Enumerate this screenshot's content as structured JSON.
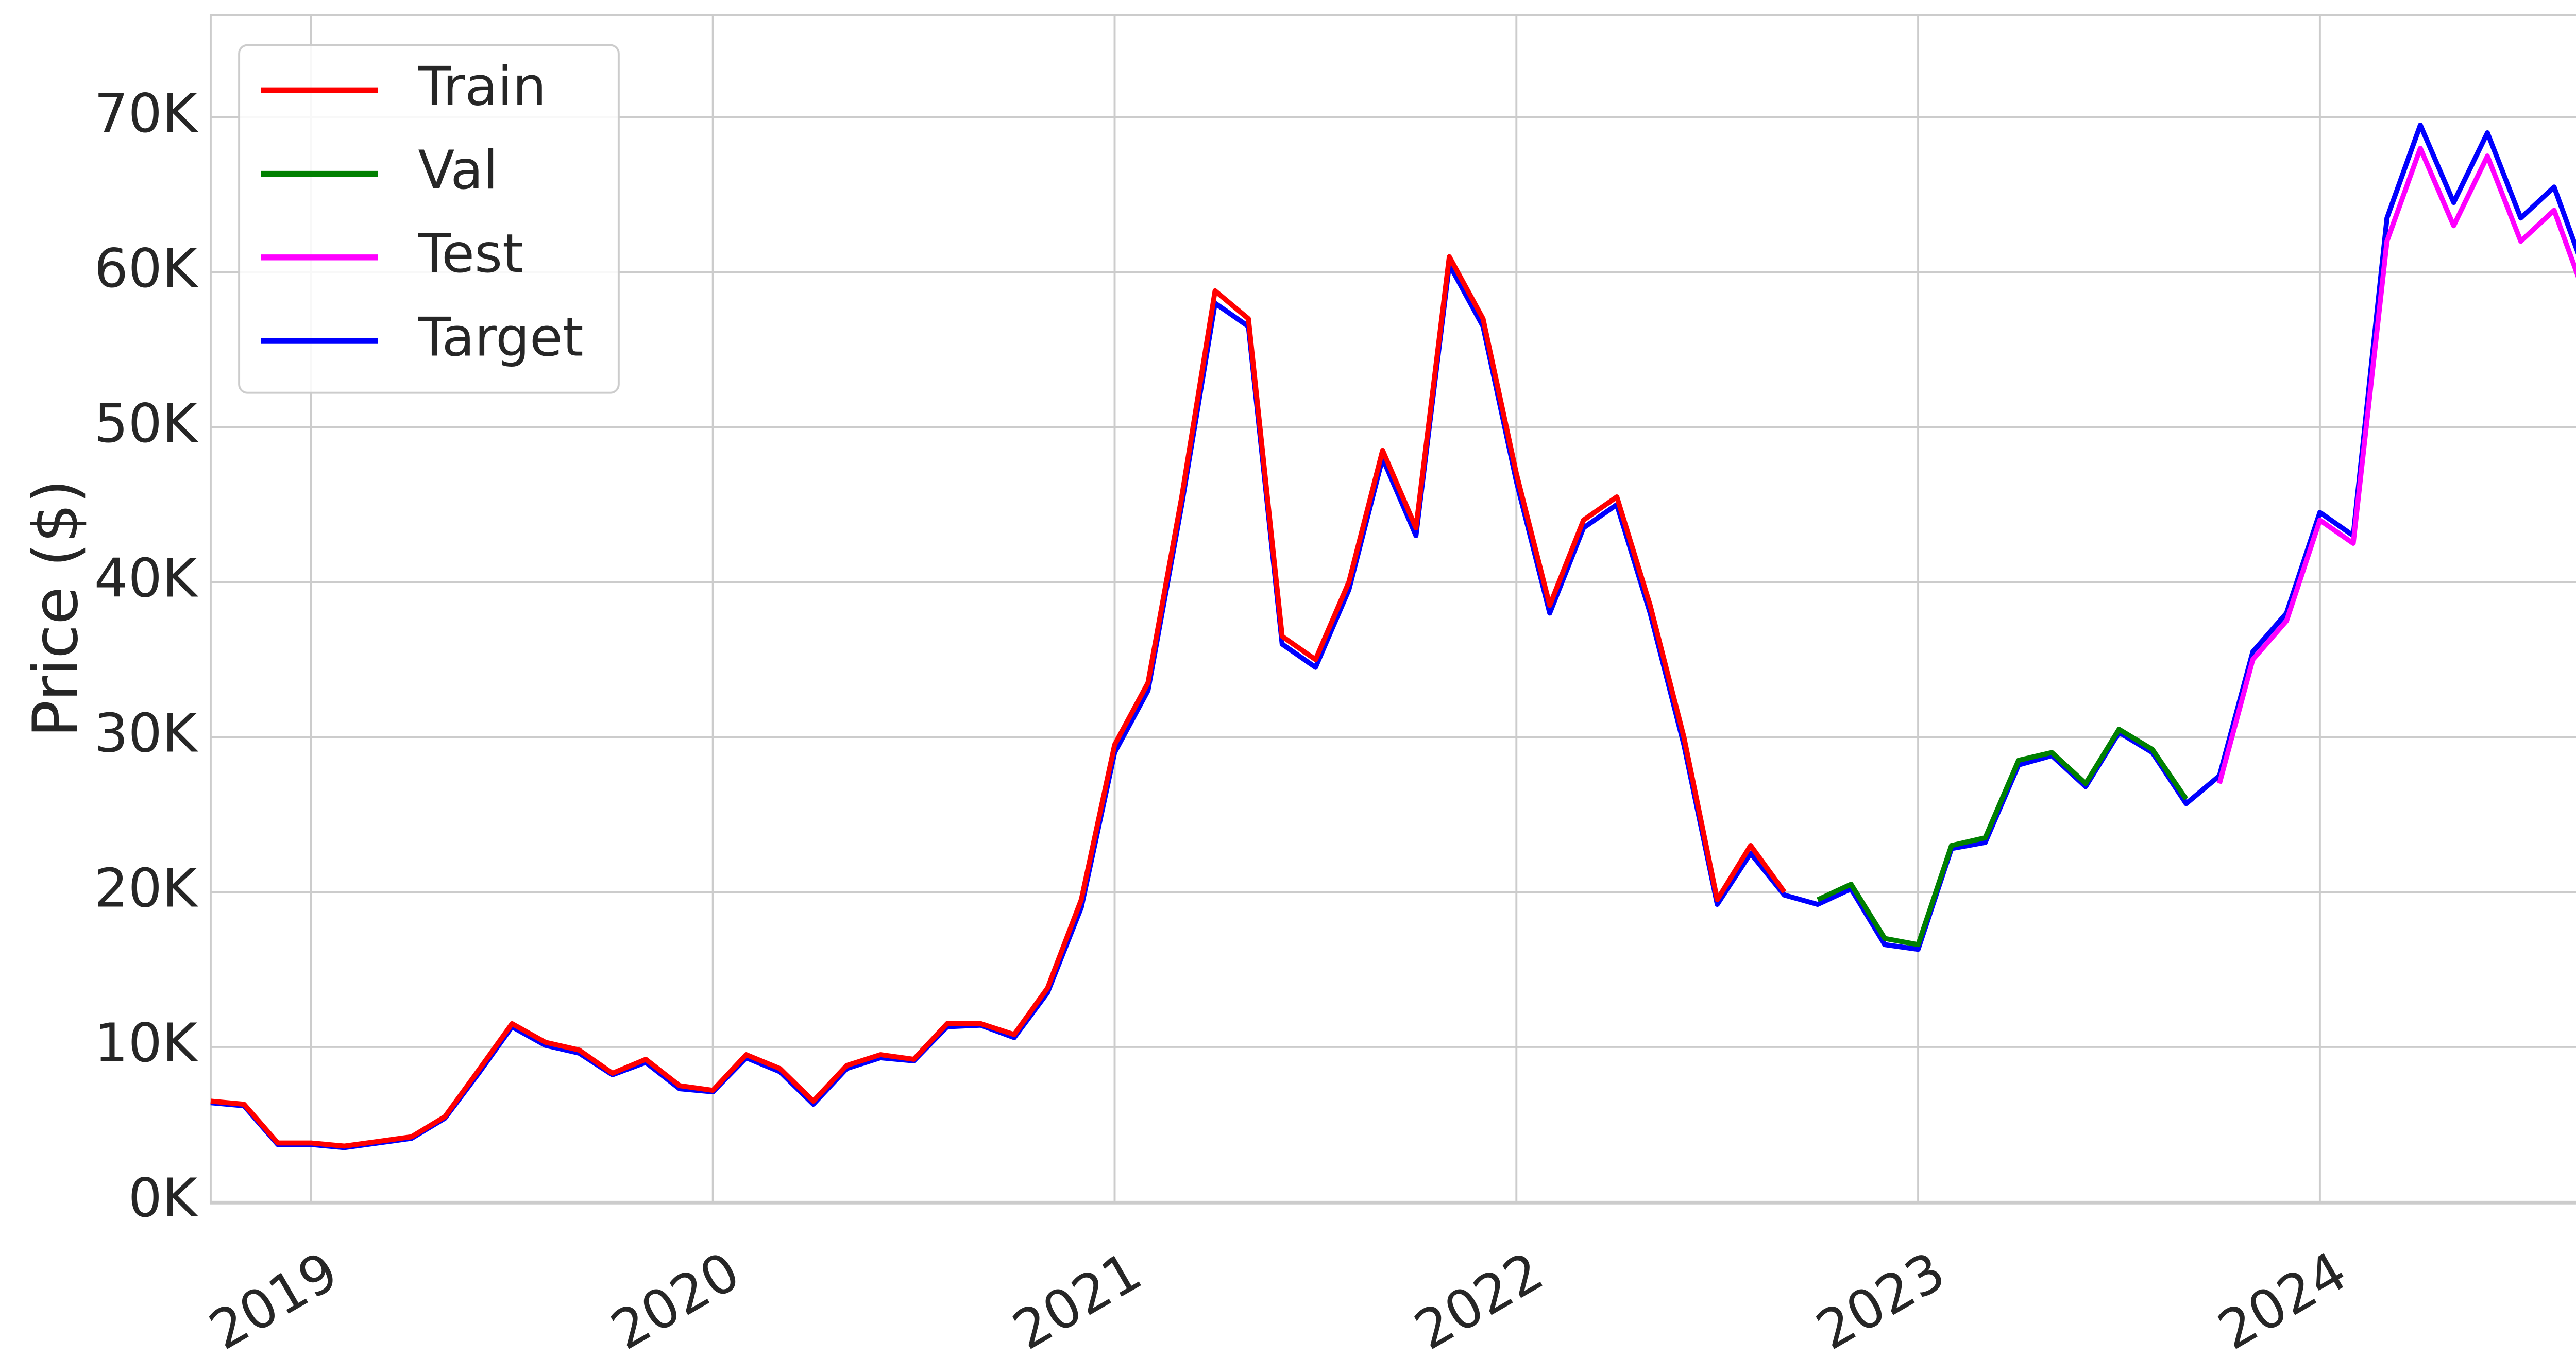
{
  "chart_data": {
    "type": "line",
    "y_label": "Price ($)",
    "x": [
      2018.75,
      2018.833,
      2018.917,
      2019,
      2019.083,
      2019.167,
      2019.25,
      2019.333,
      2019.417,
      2019.5,
      2019.583,
      2019.667,
      2019.75,
      2019.833,
      2019.917,
      2020,
      2020.083,
      2020.167,
      2020.25,
      2020.333,
      2020.417,
      2020.5,
      2020.583,
      2020.667,
      2020.75,
      2020.833,
      2020.917,
      2021,
      2021.083,
      2021.167,
      2021.25,
      2021.333,
      2021.417,
      2021.5,
      2021.583,
      2021.667,
      2021.75,
      2021.833,
      2021.917,
      2022,
      2022.083,
      2022.167,
      2022.25,
      2022.333,
      2022.417,
      2022.5,
      2022.583,
      2022.667,
      2022.75,
      2022.833,
      2022.917,
      2023,
      2023.083,
      2023.167,
      2023.25,
      2023.333,
      2023.417,
      2023.5,
      2023.583,
      2023.667,
      2023.75,
      2023.833,
      2023.917,
      2024,
      2024.083,
      2024.167,
      2024.25,
      2024.333,
      2024.417,
      2024.5,
      2024.583,
      2024.667
    ],
    "series": [
      {
        "name": "Train",
        "color": "#ff0000",
        "values": [
          6500,
          6300,
          3800,
          3800,
          3600,
          3900,
          4200,
          5500,
          8500,
          11500,
          10300,
          9800,
          8300,
          9200,
          7500,
          7200,
          9500,
          8600,
          6500,
          8800,
          9500,
          9200,
          11500,
          11500,
          10800,
          13800,
          19500,
          29500,
          33500,
          45500,
          58800,
          57000,
          36500,
          35000,
          40000,
          48500,
          43500,
          61000,
          57000,
          47000,
          38500,
          44000,
          45500,
          38500,
          30000,
          19500,
          23000,
          20000,
          null,
          null,
          null,
          null,
          null,
          null,
          null,
          null,
          null,
          null,
          null,
          null,
          null,
          null,
          null,
          null,
          null,
          null,
          null,
          null,
          null,
          null,
          null,
          null
        ]
      },
      {
        "name": "Val",
        "color": "#008000",
        "values": [
          null,
          null,
          null,
          null,
          null,
          null,
          null,
          null,
          null,
          null,
          null,
          null,
          null,
          null,
          null,
          null,
          null,
          null,
          null,
          null,
          null,
          null,
          null,
          null,
          null,
          null,
          null,
          null,
          null,
          null,
          null,
          null,
          null,
          null,
          null,
          null,
          null,
          null,
          null,
          null,
          null,
          null,
          null,
          null,
          null,
          null,
          null,
          null,
          19500,
          20500,
          17000,
          16600,
          23000,
          23500,
          28500,
          29000,
          27000,
          30500,
          29200,
          26000,
          null,
          null,
          null,
          null,
          null,
          null,
          null,
          null,
          null,
          null,
          null,
          null
        ]
      },
      {
        "name": "Test",
        "color": "#ff00ff",
        "values": [
          null,
          null,
          null,
          null,
          null,
          null,
          null,
          null,
          null,
          null,
          null,
          null,
          null,
          null,
          null,
          null,
          null,
          null,
          null,
          null,
          null,
          null,
          null,
          null,
          null,
          null,
          null,
          null,
          null,
          null,
          null,
          null,
          null,
          null,
          null,
          null,
          null,
          null,
          null,
          null,
          null,
          null,
          null,
          null,
          null,
          null,
          null,
          null,
          null,
          null,
          null,
          null,
          null,
          null,
          null,
          null,
          null,
          null,
          null,
          null,
          27000,
          35000,
          37500,
          44000,
          42500,
          62000,
          68000,
          63000,
          67500,
          62000,
          64000,
          58000
        ]
      },
      {
        "name": "Target",
        "color": "#0000ff",
        "values": [
          6400,
          6200,
          3700,
          3700,
          3500,
          3800,
          4100,
          5400,
          8300,
          11300,
          10100,
          9600,
          8200,
          9000,
          7300,
          7100,
          9300,
          8400,
          6300,
          8600,
          9300,
          9100,
          11300,
          11400,
          10600,
          13500,
          19000,
          29000,
          33000,
          45000,
          58000,
          56500,
          36000,
          34500,
          39500,
          48000,
          43000,
          60500,
          56500,
          46500,
          38000,
          43500,
          45000,
          38000,
          29500,
          19200,
          22500,
          19800,
          19200,
          20200,
          16600,
          16300,
          22800,
          23200,
          28200,
          28800,
          26800,
          30300,
          29000,
          25700,
          27500,
          35500,
          38000,
          44500,
          43000,
          63500,
          69500,
          64500,
          69000,
          63500,
          65500,
          59500
        ]
      }
    ],
    "xlim": [
      2018.75,
      2024.71
    ],
    "xticks": [
      2019,
      2020,
      2021,
      2022,
      2023,
      2024
    ],
    "ylim": [
      -100,
      76600
    ],
    "yticks": [
      {
        "value": 0,
        "label": "0K"
      },
      {
        "value": 10000,
        "label": "10K"
      },
      {
        "value": 20000,
        "label": "20K"
      },
      {
        "value": 30000,
        "label": "30K"
      },
      {
        "value": 40000,
        "label": "40K"
      },
      {
        "value": 50000,
        "label": "50K"
      },
      {
        "value": 60000,
        "label": "60K"
      },
      {
        "value": 70000,
        "label": "70K"
      }
    ],
    "grid": true,
    "legend": "upper left"
  }
}
